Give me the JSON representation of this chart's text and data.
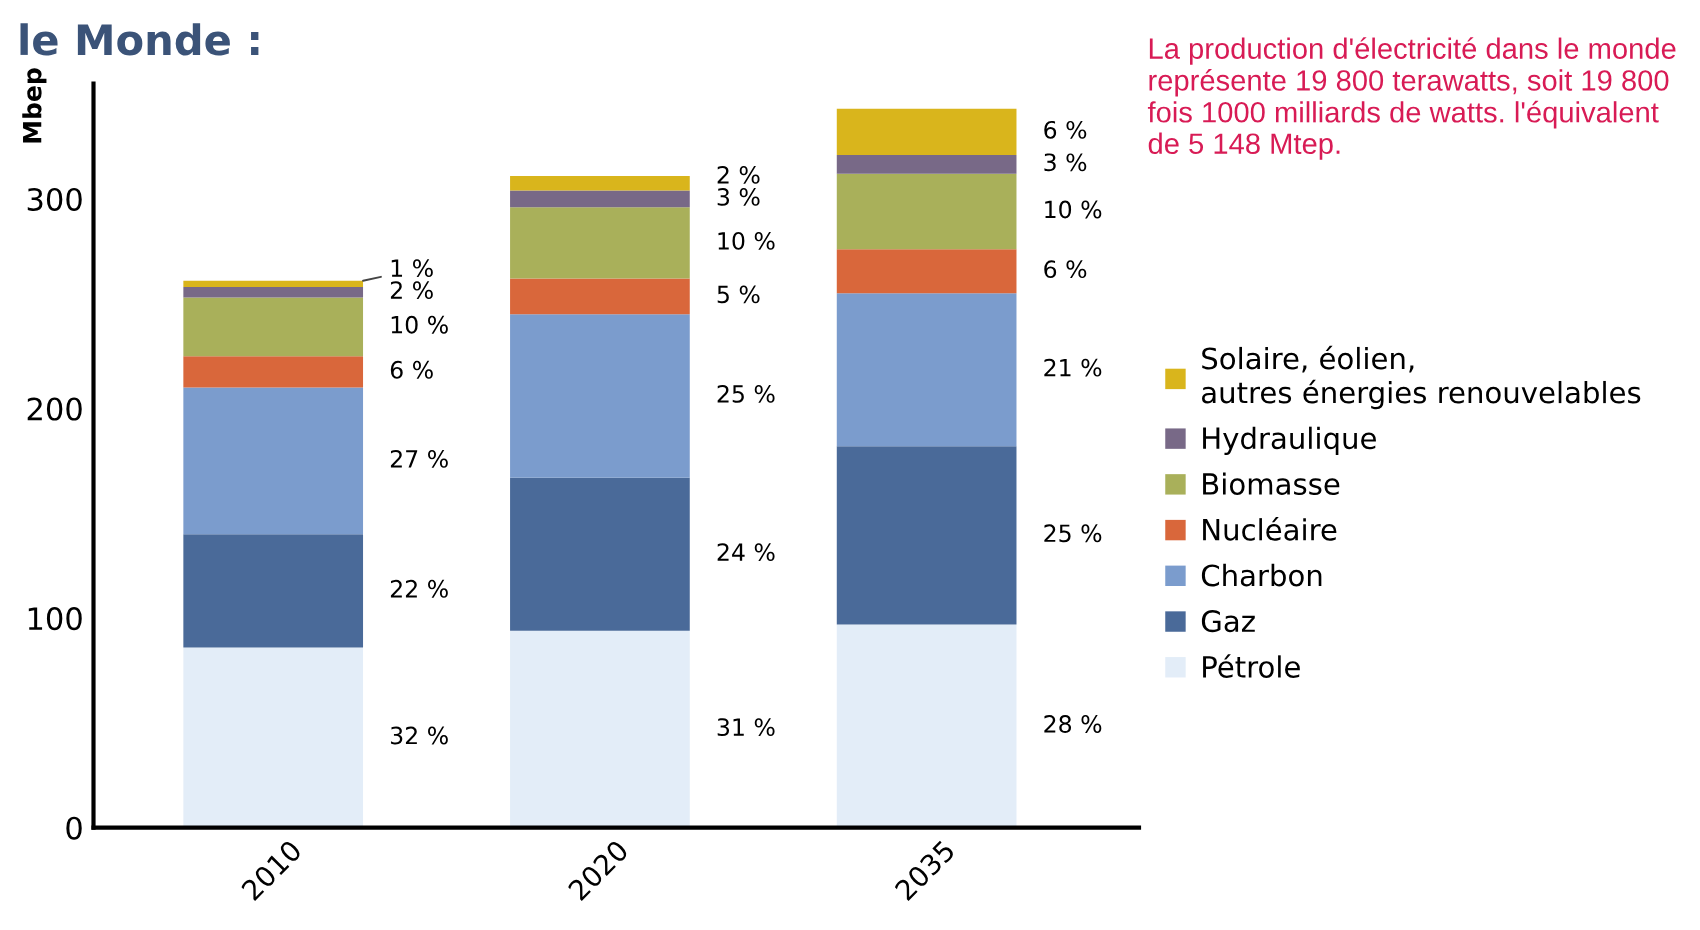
{
  "chart_data": {
    "type": "bar",
    "title": "le Monde :",
    "ylabel": "Mbep",
    "stacked": true,
    "categories": [
      "2010",
      "2020",
      "2035"
    ],
    "series": [
      {
        "name": "Pétrole",
        "color": "#e3edf8",
        "values": [
          86,
          94,
          97
        ]
      },
      {
        "name": "Gaz",
        "color": "#4a6a99",
        "values": [
          54,
          73,
          85
        ]
      },
      {
        "name": "Charbon",
        "color": "#7b9ccd",
        "values": [
          70,
          78,
          73
        ]
      },
      {
        "name": "Nucléaire",
        "color": "#d9673b",
        "values": [
          15,
          17,
          21
        ]
      },
      {
        "name": "Biomasse",
        "color": "#a9b05a",
        "values": [
          28,
          34,
          36
        ]
      },
      {
        "name": "Hydraulique",
        "color": "#786987",
        "values": [
          5,
          8,
          9
        ]
      },
      {
        "name": "Solaire, éolien,\nautres énergies renouvelables",
        "color": "#d9b51c",
        "values": [
          3,
          7,
          22
        ]
      }
    ],
    "ylim": [
      0,
      355
    ],
    "yticks": [
      0,
      100,
      200,
      300
    ],
    "grid": false,
    "legend": "right",
    "annotations": [
      "La production d'électricité dans le monde représente 19 800 terawatts, soit 19 800 fois 1000 milliards de watts. l'équivalent de 5 148 Mtep.",
      "32 %",
      "22 %",
      "27 %",
      "6 %",
      "10 %",
      "2 %",
      "1 %",
      "31 %",
      "24 %",
      "25 %",
      "5 %",
      "10 %",
      "3 %",
      "2 %",
      "28 %",
      "25 %",
      "21 %",
      "6 %",
      "10 %",
      "3 %",
      "6 %"
    ]
  }
}
